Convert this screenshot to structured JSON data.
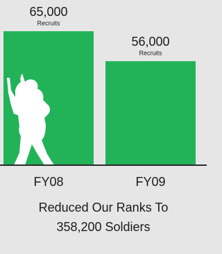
{
  "chart_data": {
    "type": "bar",
    "categories": [
      "FY08",
      "FY09"
    ],
    "values": [
      65000,
      56000
    ],
    "value_labels": [
      "65,000",
      "56,000"
    ],
    "value_sublabel": "Recruits",
    "color": "#22b359",
    "ylim": [
      25000,
      70000
    ],
    "caption": [
      "Reduced Our Ranks To",
      "358,200 Soldiers"
    ]
  }
}
